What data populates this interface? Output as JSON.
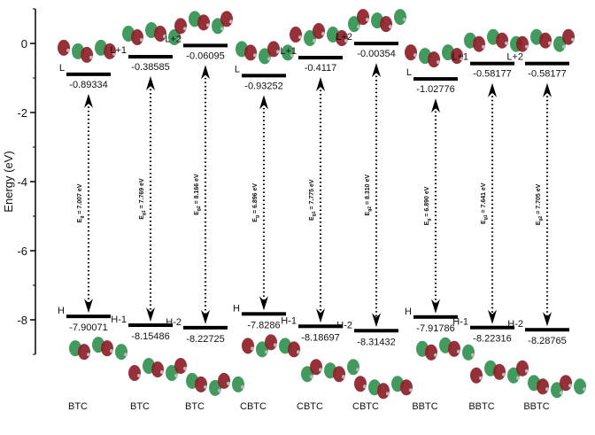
{
  "chart_data": {
    "type": "energy-level",
    "ylabel": "Energy (eV)",
    "ylim": [
      -9,
      1
    ],
    "yticks": [
      0,
      -2,
      -4,
      -6,
      -8
    ],
    "color": "#000000",
    "categories": [
      "BTC",
      "BTC",
      "BTC",
      "CBTC",
      "CBTC",
      "CBTC",
      "BBTC",
      "BBTC",
      "BBTC"
    ],
    "lumo_names": [
      "L",
      "L+1",
      "L+2",
      "L",
      "L+1",
      "L+2",
      "L",
      "L+1",
      "L+2"
    ],
    "homo_names": [
      "H",
      "H-1",
      "H-2",
      "H",
      "H-1",
      "H-2",
      "H",
      "H-1",
      "H-2"
    ],
    "lumo_values": [
      -0.89334,
      -0.38585,
      -0.06095,
      -0.93252,
      -0.4117,
      -0.00354,
      -1.02776,
      -0.58177,
      -0.58177
    ],
    "homo_values": [
      -7.90071,
      -8.15486,
      -8.22725,
      -7.8286,
      -8.18697,
      -8.31432,
      -7.91786,
      -8.22316,
      -8.28765
    ],
    "gap_labels": [
      {
        "symbol": "E",
        "subscript": "g",
        "text": " = 7.007 eV"
      },
      {
        "symbol": "E",
        "subscript": "g1",
        "text": " = 7.769 eV"
      },
      {
        "symbol": "E",
        "subscript": "g2",
        "text": " = 8.166 eV"
      },
      {
        "symbol": "E",
        "subscript": "g",
        "text": " = 6.896 eV"
      },
      {
        "symbol": "E",
        "subscript": "g1",
        "text": " = 7.775 eV"
      },
      {
        "symbol": "E",
        "subscript": "g2",
        "text": " = 8.310 eV"
      },
      {
        "symbol": "E",
        "subscript": "g",
        "text": " = 6.890 eV"
      },
      {
        "symbol": "E",
        "subscript": "g1",
        "text": " = 7.641 eV"
      },
      {
        "symbol": "E",
        "subscript": "g2",
        "text": " = 7.705 eV"
      }
    ]
  }
}
